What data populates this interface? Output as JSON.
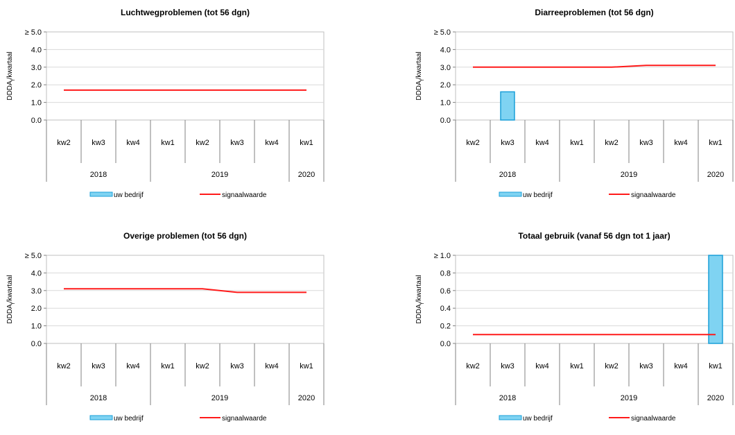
{
  "chart_data": [
    {
      "type": "bar",
      "title": "Luchtwegproblemen (tot 56 dgn)",
      "ylabel": "DDDA",
      "ylabel_sub": "f",
      "ylabel_suffix": "/kwartaal",
      "ylim": [
        0,
        5
      ],
      "yticks": [
        "0.0",
        "1.0",
        "2.0",
        "3.0",
        "4.0",
        "≥ 5.0"
      ],
      "categories": [
        "kw2",
        "kw3",
        "kw4",
        "kw1",
        "kw2",
        "kw3",
        "kw4",
        "kw1"
      ],
      "years": [
        {
          "label": "2018",
          "span": 3
        },
        {
          "label": "2019",
          "span": 4
        },
        {
          "label": "2020",
          "span": 1
        }
      ],
      "series": [
        {
          "name": "uw bedrijf",
          "kind": "bar",
          "color": "#7fd3f2",
          "stroke": "#1a9fd8",
          "values": [
            0,
            0,
            0,
            0,
            0,
            0,
            0,
            0
          ]
        },
        {
          "name": "signaalwaarde",
          "kind": "line",
          "color": "#ff1a1a",
          "values": [
            1.7,
            1.7,
            1.7,
            1.7,
            1.7,
            1.7,
            1.7,
            1.7
          ]
        }
      ],
      "grid": true,
      "legend": "bottom"
    },
    {
      "type": "bar",
      "title": "Diarreeproblemen (tot 56 dgn)",
      "ylabel": "DDDA",
      "ylabel_sub": "f",
      "ylabel_suffix": "/kwartaal",
      "ylim": [
        0,
        5
      ],
      "yticks": [
        "0.0",
        "1.0",
        "2.0",
        "3.0",
        "4.0",
        "≥ 5.0"
      ],
      "categories": [
        "kw2",
        "kw3",
        "kw4",
        "kw1",
        "kw2",
        "kw3",
        "kw4",
        "kw1"
      ],
      "years": [
        {
          "label": "2018",
          "span": 3
        },
        {
          "label": "2019",
          "span": 4
        },
        {
          "label": "2020",
          "span": 1
        }
      ],
      "series": [
        {
          "name": "uw bedrijf",
          "kind": "bar",
          "color": "#7fd3f2",
          "stroke": "#1a9fd8",
          "values": [
            0,
            1.6,
            0,
            0,
            0,
            0,
            0,
            0
          ]
        },
        {
          "name": "signaalwaarde",
          "kind": "line",
          "color": "#ff1a1a",
          "values": [
            3.0,
            3.0,
            3.0,
            3.0,
            3.0,
            3.1,
            3.1,
            3.1
          ]
        }
      ],
      "grid": true,
      "legend": "bottom"
    },
    {
      "type": "bar",
      "title": "Overige problemen (tot 56 dgn)",
      "ylabel": "DDDA",
      "ylabel_sub": "f",
      "ylabel_suffix": "/kwartaal",
      "ylim": [
        0,
        5
      ],
      "yticks": [
        "0.0",
        "1.0",
        "2.0",
        "3.0",
        "4.0",
        "≥ 5.0"
      ],
      "categories": [
        "kw2",
        "kw3",
        "kw4",
        "kw1",
        "kw2",
        "kw3",
        "kw4",
        "kw1"
      ],
      "years": [
        {
          "label": "2018",
          "span": 3
        },
        {
          "label": "2019",
          "span": 4
        },
        {
          "label": "2020",
          "span": 1
        }
      ],
      "series": [
        {
          "name": "uw bedrijf",
          "kind": "bar",
          "color": "#7fd3f2",
          "stroke": "#1a9fd8",
          "values": [
            0,
            0,
            0,
            0,
            0,
            0,
            0,
            0
          ]
        },
        {
          "name": "signaalwaarde",
          "kind": "line",
          "color": "#ff1a1a",
          "values": [
            3.1,
            3.1,
            3.1,
            3.1,
            3.1,
            2.9,
            2.9,
            2.9
          ]
        }
      ],
      "grid": true,
      "legend": "bottom"
    },
    {
      "type": "bar",
      "title": "Totaal gebruik (vanaf 56 dgn tot 1 jaar)",
      "ylabel": "DDDA",
      "ylabel_sub": "f",
      "ylabel_suffix": "/kwartaal",
      "ylim": [
        0,
        1
      ],
      "yticks": [
        "0.0",
        "0.2",
        "0.4",
        "0.6",
        "0.8",
        "≥ 1.0"
      ],
      "categories": [
        "kw2",
        "kw3",
        "kw4",
        "kw1",
        "kw2",
        "kw3",
        "kw4",
        "kw1"
      ],
      "years": [
        {
          "label": "2018",
          "span": 3
        },
        {
          "label": "2019",
          "span": 4
        },
        {
          "label": "2020",
          "span": 1
        }
      ],
      "series": [
        {
          "name": "uw bedrijf",
          "kind": "bar",
          "color": "#7fd3f2",
          "stroke": "#1a9fd8",
          "values": [
            0,
            0,
            0,
            0,
            0,
            0,
            0,
            1.0
          ]
        },
        {
          "name": "signaalwaarde",
          "kind": "line",
          "color": "#ff1a1a",
          "values": [
            0.1,
            0.1,
            0.1,
            0.1,
            0.1,
            0.1,
            0.1,
            0.1
          ]
        }
      ],
      "grid": true,
      "legend": "bottom"
    }
  ]
}
